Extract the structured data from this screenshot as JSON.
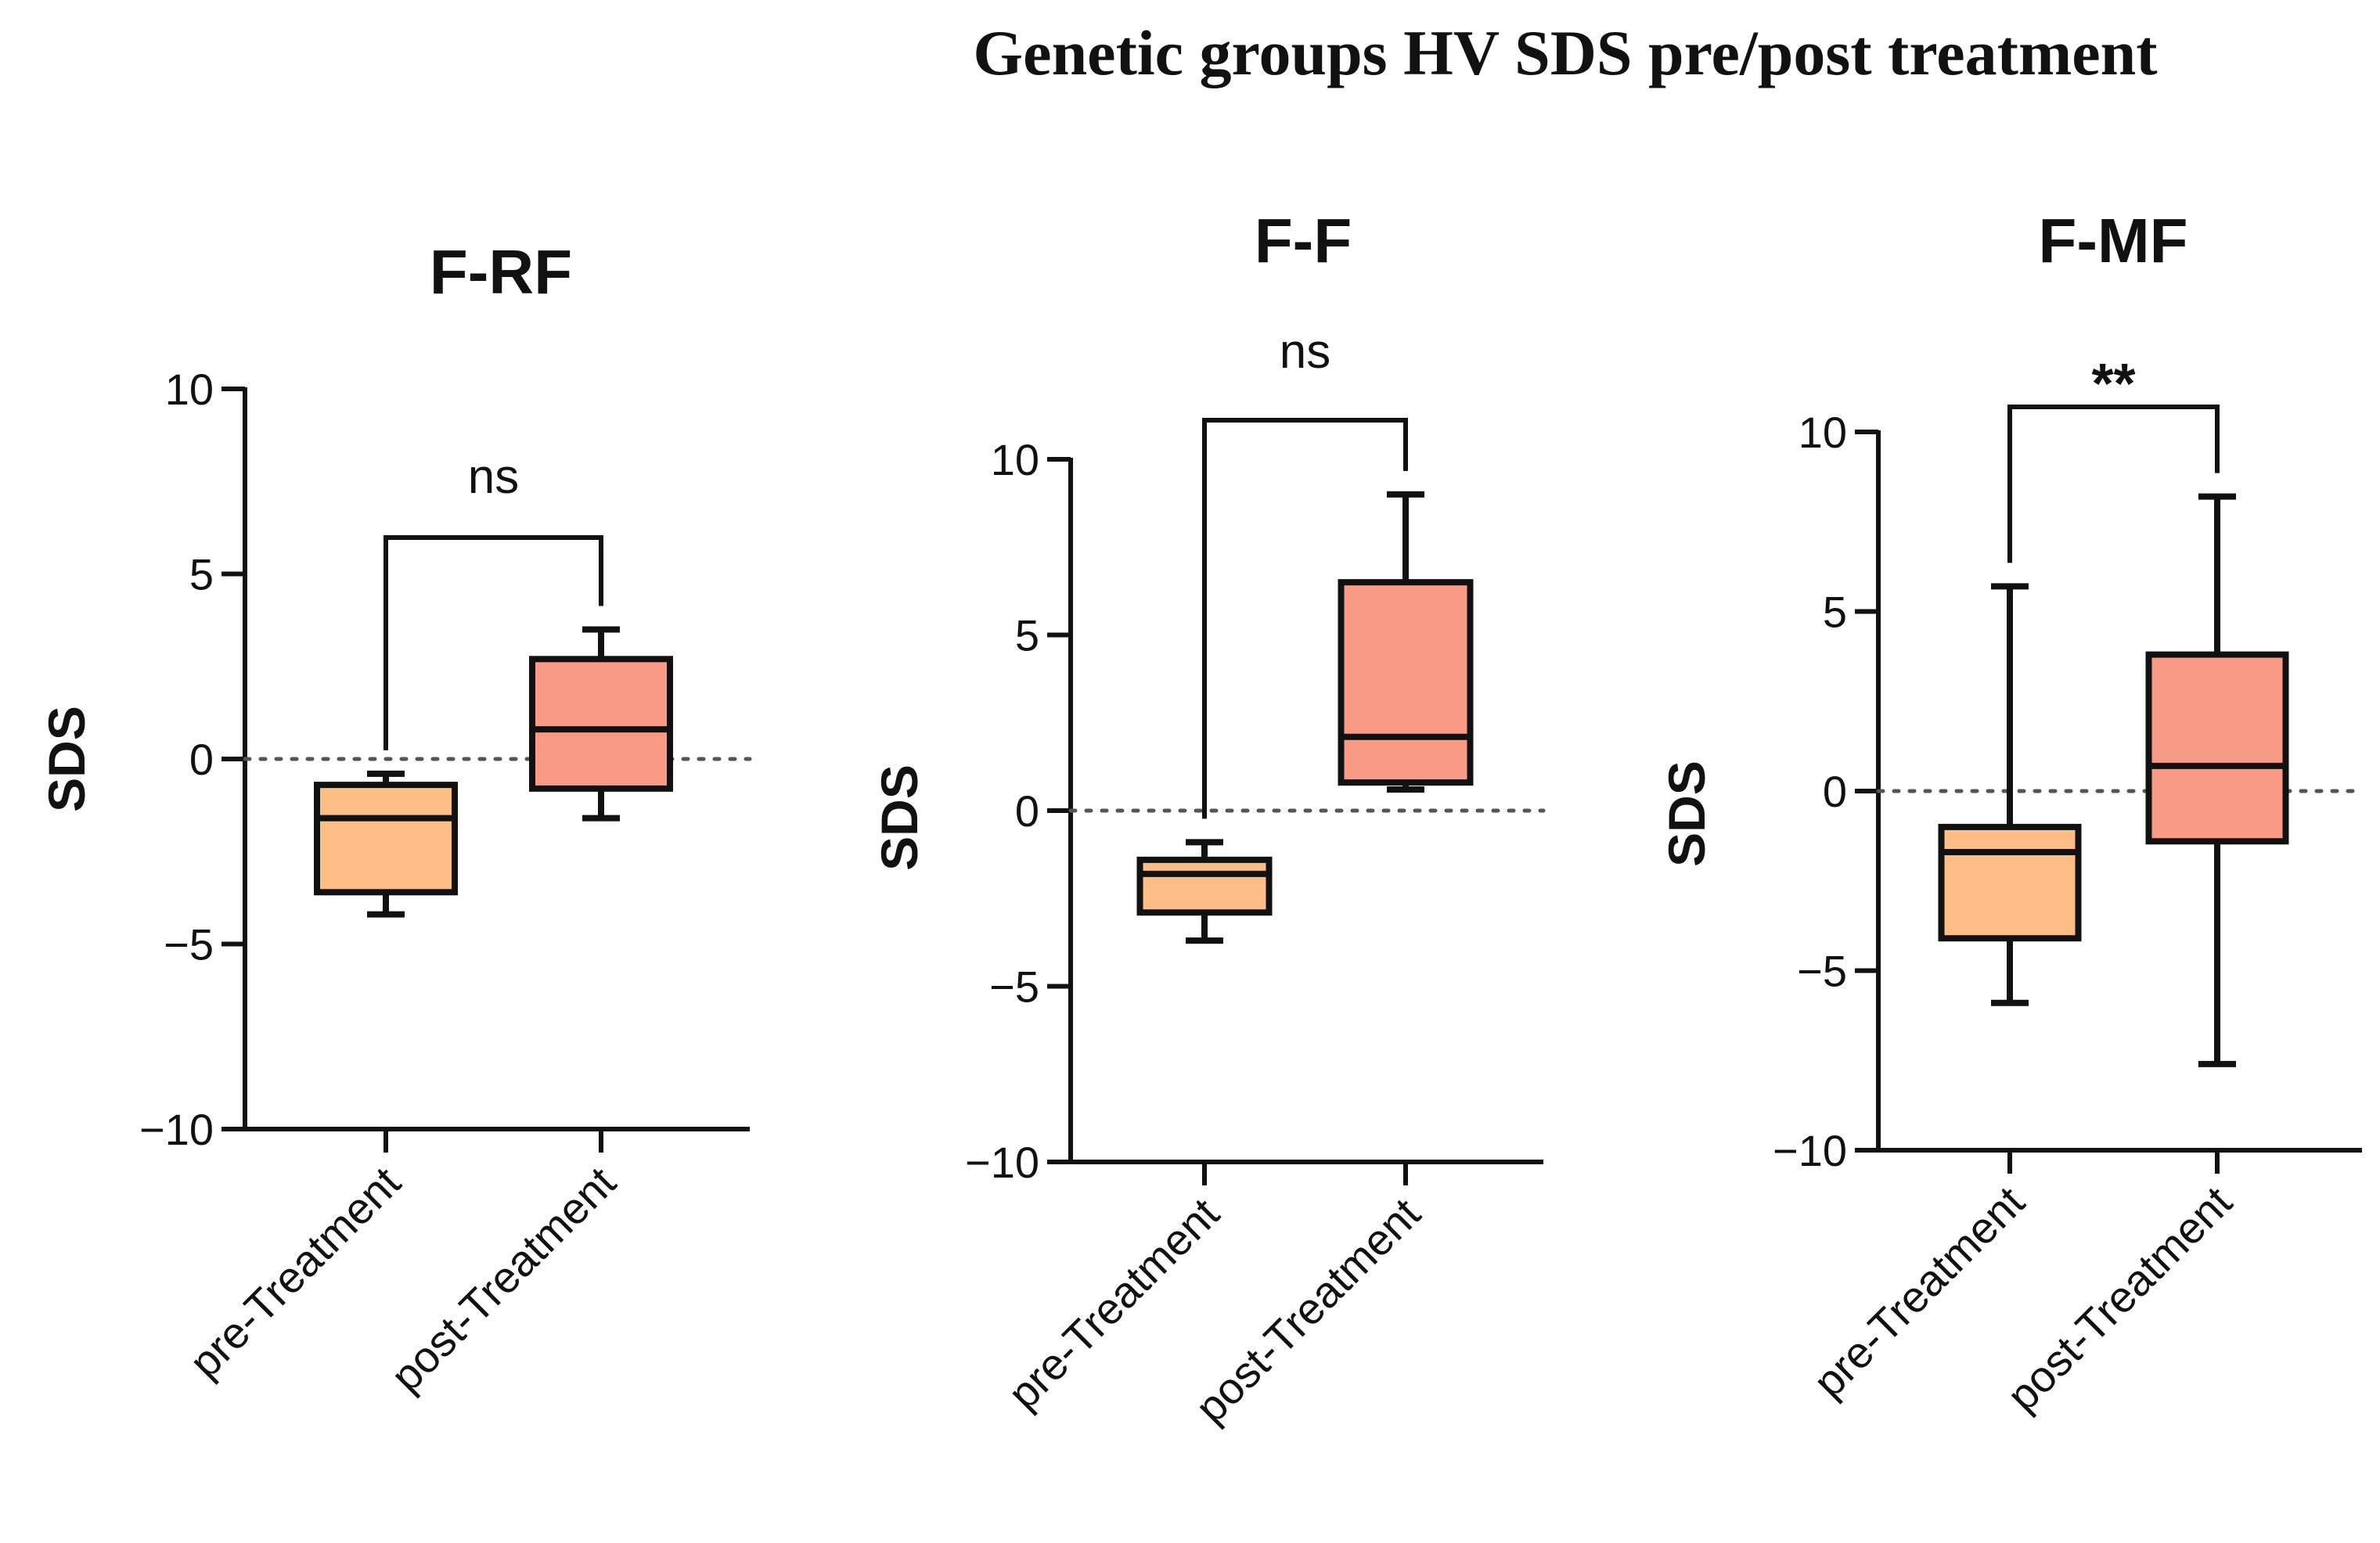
{
  "chart_data": {
    "title": "Genetic groups HV SDS pre/post treatment",
    "type": "box",
    "categories": [
      "pre-Treatment",
      "post-Treatment"
    ],
    "colors": {
      "pre": "#FDBE85",
      "post": "#F99A84",
      "stroke": "#111111",
      "refline": "#555555"
    },
    "panels": [
      {
        "title": "F-RF",
        "ylabel": "SDS",
        "ylim": [
          -10,
          10
        ],
        "yticks": [
          -10,
          -5,
          0,
          5,
          10
        ],
        "ytick_labels": [
          "−10",
          "−5",
          "0",
          "5",
          "10"
        ],
        "boxes": [
          {
            "category": "pre-Treatment",
            "min": -4.2,
            "q1": -3.6,
            "median": -1.6,
            "q3": -0.7,
            "max": -0.4
          },
          {
            "category": "post-Treatment",
            "min": -1.6,
            "q1": -0.8,
            "median": 0.8,
            "q3": 2.7,
            "max": 3.5
          }
        ],
        "significance": "ns",
        "reference_line": 0
      },
      {
        "title": "F-F",
        "ylabel": "SDS",
        "ylim": [
          -10,
          10
        ],
        "yticks": [
          -10,
          -5,
          0,
          5,
          10
        ],
        "ytick_labels": [
          "−10",
          "−5",
          "0",
          "5",
          "10"
        ],
        "boxes": [
          {
            "category": "pre-Treatment",
            "min": -3.7,
            "q1": -2.9,
            "median": -1.8,
            "q3": -1.4,
            "max": -0.9
          },
          {
            "category": "post-Treatment",
            "min": 0.6,
            "q1": 0.8,
            "median": 2.1,
            "q3": 6.5,
            "max": 9.0
          }
        ],
        "significance": "ns",
        "reference_line": 0
      },
      {
        "title": "F-MF",
        "ylabel": "SDS",
        "ylim": [
          -10,
          10
        ],
        "yticks": [
          -10,
          -5,
          0,
          5,
          10
        ],
        "ytick_labels": [
          "−10",
          "−5",
          "0",
          "5",
          "10"
        ],
        "boxes": [
          {
            "category": "pre-Treatment",
            "min": -5.9,
            "q1": -4.1,
            "median": -1.7,
            "q3": -1.0,
            "max": 5.7
          },
          {
            "category": "post-Treatment",
            "min": -7.6,
            "q1": -1.4,
            "median": 0.7,
            "q3": 3.8,
            "max": 8.2
          }
        ],
        "significance": "**",
        "reference_line": 0
      }
    ]
  }
}
